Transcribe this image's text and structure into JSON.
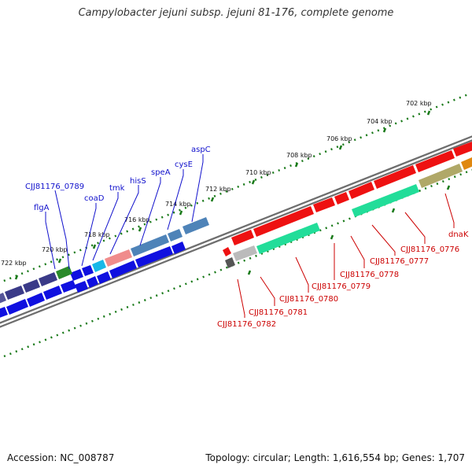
{
  "title": "Campylobacter jejuni subsp. jejuni 81-176, complete genome",
  "accession": "Accession: NC_008787",
  "topology": "Topology: circular; Length: 1,616,554 bp; Genes: 1,707",
  "kbp_labels": [
    "702 kbp",
    "704 kbp",
    "706 kbp",
    "708 kbp",
    "710 kbp",
    "712 kbp",
    "714 kbp",
    "716 kbp",
    "718 kbp",
    "720 kbp",
    "722 kbp"
  ],
  "forward_genes": [
    "aspC",
    "cysE",
    "speA",
    "hisS",
    "tmk",
    "coaD",
    "CJJ81176_0789",
    "flgA"
  ],
  "reverse_genes": [
    "dnaK",
    "CJJ81176_0776",
    "CJJ81176_0777",
    "CJJ81176_0778",
    "CJJ81176_0779",
    "CJJ81176_0780",
    "CJJ81176_0781",
    "CJJ81176_0782"
  ],
  "colors": {
    "forward_label": "#1010cc",
    "reverse_label": "#cc0000",
    "backbone": "#777777",
    "dots": "#1a7a1a"
  }
}
